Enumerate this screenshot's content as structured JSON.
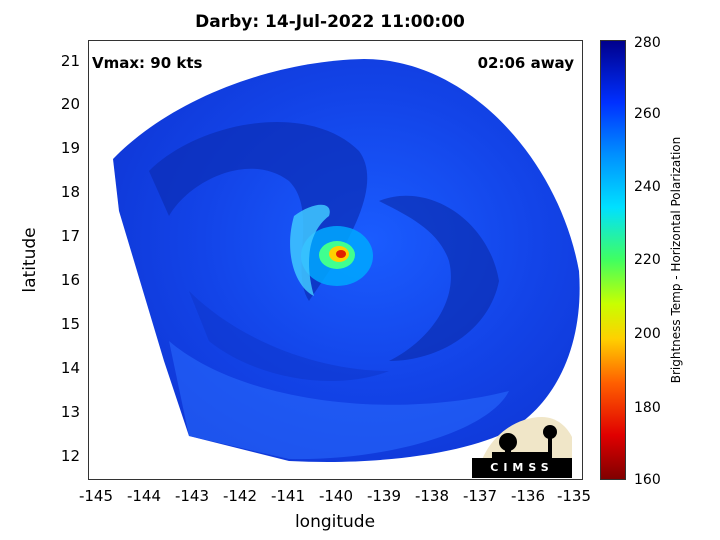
{
  "title": "Darby: 14-Jul-2022 11:00:00",
  "overlay": {
    "vmax": "Vmax: 90 kts",
    "away": "02:06 away"
  },
  "axes": {
    "xlabel": "longitude",
    "ylabel": "latitude",
    "xticks": [
      "-145",
      "-144",
      "-143",
      "-142",
      "-141",
      "-140",
      "-139",
      "-138",
      "-137",
      "-136",
      "-135"
    ],
    "yticks": [
      "21",
      "20",
      "19",
      "18",
      "17",
      "16",
      "15",
      "14",
      "13",
      "12"
    ]
  },
  "colorbar": {
    "label": "Brightness Temp - Horizontal Polarization",
    "ticks": [
      "280",
      "260",
      "240",
      "220",
      "200",
      "180",
      "160"
    ],
    "colors": {
      "cold": "#800000",
      "hot": "#00008c",
      "mid": "#ffd000"
    }
  },
  "logo": {
    "text": "CIMSS"
  }
}
